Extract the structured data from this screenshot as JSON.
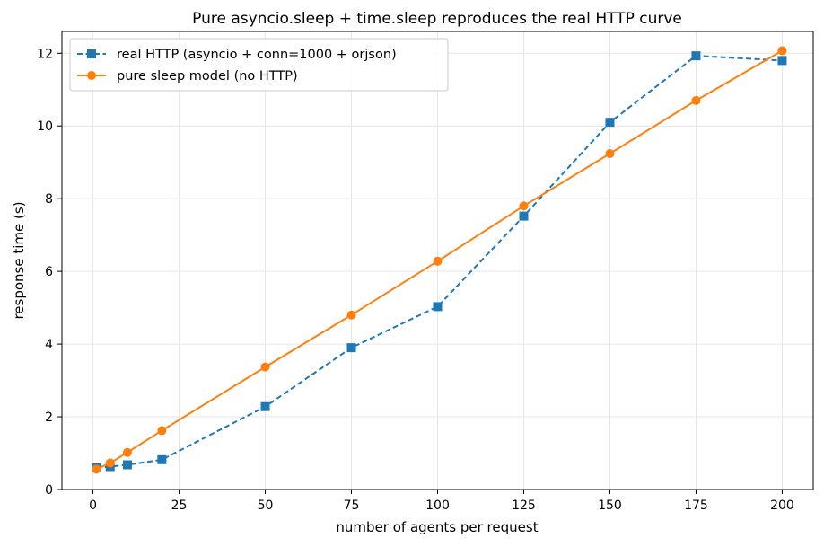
{
  "chart_data": {
    "type": "line",
    "title": "Pure asyncio.sleep + time.sleep reproduces the real HTTP curve",
    "xlabel": "number of agents per request",
    "ylabel": "response time (s)",
    "xlim": [
      -9,
      209
    ],
    "ylim": [
      0,
      12.6
    ],
    "xticks": [
      0,
      25,
      50,
      75,
      100,
      125,
      150,
      175,
      200
    ],
    "yticks": [
      0,
      2,
      4,
      6,
      8,
      10,
      12
    ],
    "grid": true,
    "legend_position": "top-left",
    "series": [
      {
        "name": "real HTTP (asyncio + conn=1000 + orjson)",
        "color": "#1f77b4",
        "line_style": "dashed",
        "marker": "square",
        "x": [
          1,
          5,
          10,
          20,
          50,
          75,
          100,
          125,
          150,
          175,
          200
        ],
        "y": [
          0.6,
          0.63,
          0.68,
          0.82,
          2.28,
          3.9,
          5.03,
          7.52,
          10.1,
          11.93,
          11.8
        ]
      },
      {
        "name": "pure sleep model (no HTTP)",
        "color": "#ff7f0e",
        "line_style": "solid",
        "marker": "circle",
        "x": [
          1,
          5,
          10,
          20,
          50,
          75,
          100,
          125,
          150,
          175,
          200
        ],
        "y": [
          0.56,
          0.73,
          1.02,
          1.62,
          3.37,
          4.8,
          6.28,
          7.8,
          9.24,
          10.7,
          12.07
        ]
      }
    ]
  }
}
